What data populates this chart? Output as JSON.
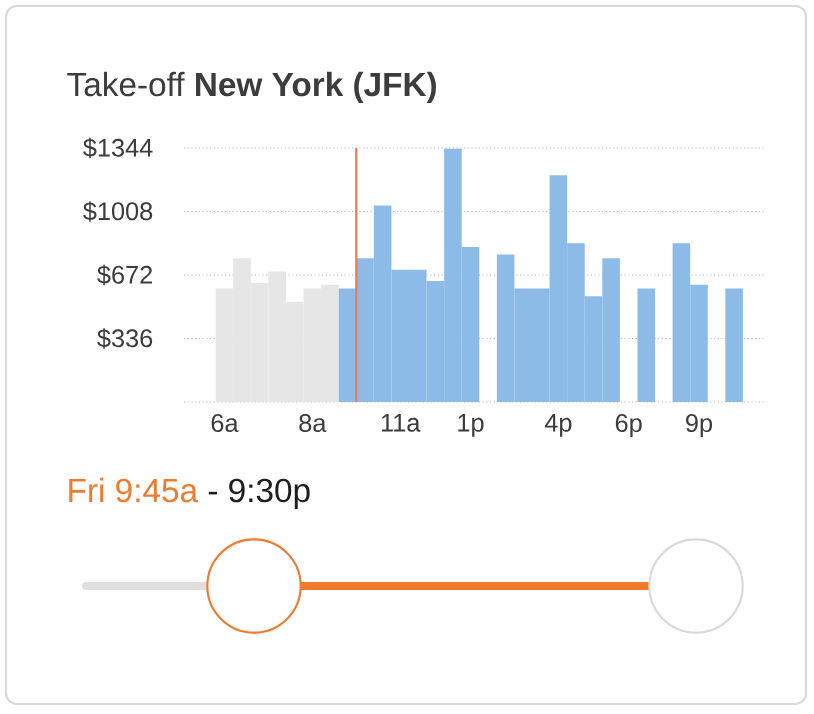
{
  "chart_data": {
    "type": "bar",
    "title": "Take-off **New York (JFK)**",
    "categories": [
      "6a",
      null,
      null,
      null,
      null,
      "8a",
      null,
      null,
      null,
      null,
      "11a",
      null,
      null,
      null,
      "1p",
      null,
      null,
      null,
      null,
      "4p",
      null,
      null,
      null,
      "6p",
      null,
      null,
      null,
      "9p",
      null,
      null
    ],
    "values": [
      600,
      760,
      630,
      690,
      530,
      600,
      620,
      600,
      760,
      1040,
      700,
      700,
      640,
      1340,
      820,
      null,
      780,
      600,
      600,
      1200,
      840,
      560,
      760,
      null,
      600,
      null,
      840,
      620,
      null,
      600
    ],
    "colors": [
      "#e6e6e6",
      "#e6e6e6",
      "#e6e6e6",
      "#e6e6e6",
      "#e6e6e6",
      "#e6e6e6",
      "#e6e6e6",
      "#8dbbe8",
      "#8dbbe8",
      "#8dbbe8",
      "#8dbbe8",
      "#8dbbe8",
      "#8dbbe8",
      "#8dbbe8",
      "#8dbbe8",
      "#8dbbe8",
      "#8dbbe8",
      "#8dbbe8",
      "#8dbbe8",
      "#8dbbe8",
      "#8dbbe8",
      "#8dbbe8",
      "#8dbbe8",
      "#8dbbe8",
      "#8dbbe8",
      "#8dbbe8",
      "#8dbbe8",
      "#8dbbe8",
      "#8dbbe8",
      "#8dbbe8"
    ],
    "ylim": [
      0,
      1344
    ],
    "yticks": [
      {
        "value": 0,
        "label": null
      },
      {
        "value": 336,
        "label": "$336"
      },
      {
        "value": 672,
        "label": "$672"
      },
      {
        "value": 1008,
        "label": "$1008"
      },
      {
        "value": 1344,
        "label": "$1344"
      }
    ],
    "grid": "y",
    "annotations": [
      "Fri 9:45a",
      "- 9:30p"
    ]
  }
}
